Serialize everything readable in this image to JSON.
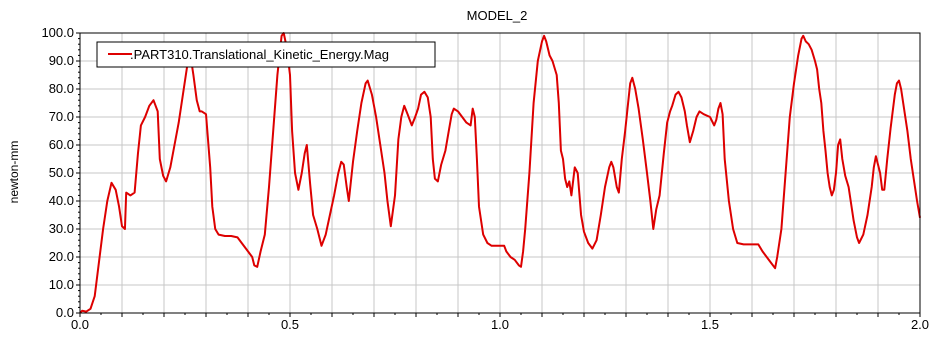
{
  "chart_data": {
    "type": "line",
    "title": "MODEL_2",
    "xlabel": "",
    "ylabel": "newton-mm",
    "xlim": [
      0.0,
      2.0
    ],
    "ylim": [
      0.0,
      100.0
    ],
    "xticks": [
      "0.0",
      "0.5",
      "1.0",
      "1.5",
      "2.0"
    ],
    "yticks": [
      "0.0",
      "10.0",
      "20.0",
      "30.0",
      "40.0",
      "50.0",
      "60.0",
      "70.0",
      "80.0",
      "90.0",
      "100.0"
    ],
    "grid": true,
    "legend_position": "top-left",
    "series": [
      {
        "name": ".PART310.Translational_Kinetic_Energy.Mag",
        "color": "#dd0000",
        "points": [
          [
            0.0,
            0.0
          ],
          [
            0.005,
            0.8
          ],
          [
            0.015,
            0.5
          ],
          [
            0.025,
            1.5
          ],
          [
            0.035,
            6
          ],
          [
            0.045,
            18
          ],
          [
            0.055,
            30
          ],
          [
            0.065,
            40
          ],
          [
            0.075,
            46.5
          ],
          [
            0.085,
            44
          ],
          [
            0.093,
            38
          ],
          [
            0.1,
            31
          ],
          [
            0.107,
            30
          ],
          [
            0.11,
            43
          ],
          [
            0.12,
            42
          ],
          [
            0.13,
            43
          ],
          [
            0.138,
            57
          ],
          [
            0.145,
            67
          ],
          [
            0.155,
            70
          ],
          [
            0.165,
            74
          ],
          [
            0.175,
            76
          ],
          [
            0.185,
            72
          ],
          [
            0.19,
            55
          ],
          [
            0.198,
            49
          ],
          [
            0.205,
            47
          ],
          [
            0.215,
            52
          ],
          [
            0.225,
            60
          ],
          [
            0.235,
            68
          ],
          [
            0.245,
            78
          ],
          [
            0.255,
            88
          ],
          [
            0.262,
            93
          ],
          [
            0.27,
            85
          ],
          [
            0.278,
            76
          ],
          [
            0.285,
            72
          ],
          [
            0.29,
            72
          ],
          [
            0.3,
            71
          ],
          [
            0.31,
            52
          ],
          [
            0.315,
            38
          ],
          [
            0.322,
            30
          ],
          [
            0.33,
            28
          ],
          [
            0.345,
            27.5
          ],
          [
            0.36,
            27.5
          ],
          [
            0.375,
            27
          ],
          [
            0.385,
            25
          ],
          [
            0.4,
            22
          ],
          [
            0.41,
            20
          ],
          [
            0.415,
            17
          ],
          [
            0.422,
            16.5
          ],
          [
            0.43,
            22
          ],
          [
            0.44,
            28
          ],
          [
            0.45,
            45
          ],
          [
            0.46,
            65
          ],
          [
            0.47,
            85
          ],
          [
            0.48,
            99
          ],
          [
            0.485,
            100
          ],
          [
            0.492,
            95
          ],
          [
            0.5,
            85
          ],
          [
            0.505,
            65
          ],
          [
            0.512,
            50
          ],
          [
            0.52,
            44
          ],
          [
            0.528,
            50
          ],
          [
            0.535,
            57
          ],
          [
            0.54,
            60
          ],
          [
            0.548,
            46
          ],
          [
            0.555,
            35
          ],
          [
            0.565,
            30
          ],
          [
            0.575,
            24
          ],
          [
            0.585,
            28
          ],
          [
            0.595,
            35
          ],
          [
            0.605,
            42
          ],
          [
            0.615,
            50
          ],
          [
            0.622,
            54
          ],
          [
            0.628,
            53
          ],
          [
            0.635,
            45
          ],
          [
            0.64,
            40
          ],
          [
            0.65,
            54
          ],
          [
            0.66,
            65
          ],
          [
            0.67,
            75
          ],
          [
            0.68,
            82
          ],
          [
            0.685,
            83
          ],
          [
            0.695,
            78
          ],
          [
            0.705,
            70
          ],
          [
            0.715,
            60
          ],
          [
            0.725,
            50
          ],
          [
            0.732,
            40
          ],
          [
            0.74,
            31
          ],
          [
            0.75,
            42
          ],
          [
            0.758,
            62
          ],
          [
            0.765,
            70
          ],
          [
            0.772,
            74
          ],
          [
            0.78,
            71
          ],
          [
            0.79,
            67
          ],
          [
            0.798,
            70
          ],
          [
            0.805,
            73
          ],
          [
            0.812,
            78
          ],
          [
            0.82,
            79
          ],
          [
            0.828,
            77
          ],
          [
            0.835,
            70
          ],
          [
            0.84,
            55
          ],
          [
            0.845,
            48
          ],
          [
            0.852,
            47
          ],
          [
            0.86,
            53
          ],
          [
            0.87,
            58
          ],
          [
            0.878,
            65
          ],
          [
            0.885,
            71
          ],
          [
            0.89,
            73
          ],
          [
            0.9,
            72
          ],
          [
            0.91,
            70
          ],
          [
            0.92,
            68
          ],
          [
            0.93,
            67
          ],
          [
            0.935,
            73
          ],
          [
            0.94,
            70
          ],
          [
            0.945,
            55
          ],
          [
            0.95,
            38
          ],
          [
            0.96,
            28
          ],
          [
            0.97,
            25
          ],
          [
            0.98,
            24
          ],
          [
            0.995,
            24
          ],
          [
            1.01,
            24
          ],
          [
            1.015,
            22
          ],
          [
            1.025,
            20
          ],
          [
            1.035,
            19
          ],
          [
            1.045,
            17
          ],
          [
            1.05,
            16.5
          ],
          [
            1.055,
            22
          ],
          [
            1.06,
            30
          ],
          [
            1.07,
            50
          ],
          [
            1.08,
            75
          ],
          [
            1.09,
            90
          ],
          [
            1.1,
            97
          ],
          [
            1.105,
            99
          ],
          [
            1.11,
            97
          ],
          [
            1.118,
            92
          ],
          [
            1.125,
            90
          ],
          [
            1.135,
            85
          ],
          [
            1.14,
            75
          ],
          [
            1.145,
            58
          ],
          [
            1.15,
            55
          ],
          [
            1.155,
            48
          ],
          [
            1.16,
            45
          ],
          [
            1.165,
            47
          ],
          [
            1.17,
            42
          ],
          [
            1.178,
            52
          ],
          [
            1.185,
            50
          ],
          [
            1.193,
            35
          ],
          [
            1.2,
            29
          ],
          [
            1.21,
            25
          ],
          [
            1.22,
            23
          ],
          [
            1.23,
            26
          ],
          [
            1.24,
            35
          ],
          [
            1.25,
            45
          ],
          [
            1.26,
            52
          ],
          [
            1.265,
            54
          ],
          [
            1.27,
            52
          ],
          [
            1.278,
            45
          ],
          [
            1.283,
            43
          ],
          [
            1.29,
            55
          ],
          [
            1.298,
            65
          ],
          [
            1.305,
            75
          ],
          [
            1.31,
            82
          ],
          [
            1.315,
            84
          ],
          [
            1.322,
            80
          ],
          [
            1.33,
            73
          ],
          [
            1.34,
            62
          ],
          [
            1.35,
            50
          ],
          [
            1.358,
            40
          ],
          [
            1.365,
            30
          ],
          [
            1.372,
            37
          ],
          [
            1.38,
            42
          ],
          [
            1.39,
            57
          ],
          [
            1.398,
            68
          ],
          [
            1.405,
            72
          ],
          [
            1.41,
            74
          ],
          [
            1.418,
            78
          ],
          [
            1.425,
            79
          ],
          [
            1.432,
            77
          ],
          [
            1.44,
            72
          ],
          [
            1.445,
            67
          ],
          [
            1.452,
            61
          ],
          [
            1.46,
            65
          ],
          [
            1.468,
            70
          ],
          [
            1.475,
            72
          ],
          [
            1.485,
            71
          ],
          [
            1.5,
            70
          ],
          [
            1.51,
            67
          ],
          [
            1.515,
            69
          ],
          [
            1.52,
            73
          ],
          [
            1.525,
            75
          ],
          [
            1.53,
            71
          ],
          [
            1.535,
            55
          ],
          [
            1.545,
            40
          ],
          [
            1.555,
            30
          ],
          [
            1.565,
            25
          ],
          [
            1.58,
            24.5
          ],
          [
            1.6,
            24.5
          ],
          [
            1.615,
            24.5
          ],
          [
            1.625,
            22
          ],
          [
            1.635,
            20
          ],
          [
            1.645,
            18
          ],
          [
            1.655,
            16
          ],
          [
            1.66,
            20
          ],
          [
            1.67,
            30
          ],
          [
            1.68,
            50
          ],
          [
            1.69,
            70
          ],
          [
            1.7,
            82
          ],
          [
            1.71,
            92
          ],
          [
            1.718,
            98
          ],
          [
            1.722,
            99
          ],
          [
            1.728,
            97
          ],
          [
            1.735,
            96
          ],
          [
            1.742,
            94
          ],
          [
            1.75,
            90
          ],
          [
            1.755,
            87
          ],
          [
            1.76,
            80
          ],
          [
            1.765,
            75
          ],
          [
            1.77,
            65
          ],
          [
            1.775,
            58
          ],
          [
            1.78,
            50
          ],
          [
            1.785,
            45
          ],
          [
            1.79,
            42
          ],
          [
            1.795,
            44
          ],
          [
            1.8,
            50
          ],
          [
            1.805,
            60
          ],
          [
            1.81,
            62
          ],
          [
            1.815,
            55
          ],
          [
            1.822,
            49
          ],
          [
            1.83,
            45
          ],
          [
            1.835,
            40
          ],
          [
            1.842,
            33
          ],
          [
            1.85,
            27
          ],
          [
            1.855,
            25
          ],
          [
            1.865,
            28
          ],
          [
            1.875,
            35
          ],
          [
            1.885,
            45
          ],
          [
            1.89,
            52
          ],
          [
            1.895,
            56
          ],
          [
            1.9,
            53
          ],
          [
            1.905,
            50
          ],
          [
            1.91,
            44
          ],
          [
            1.915,
            44
          ],
          [
            1.922,
            55
          ],
          [
            1.93,
            66
          ],
          [
            1.935,
            72
          ],
          [
            1.94,
            78
          ],
          [
            1.945,
            82
          ],
          [
            1.95,
            83
          ],
          [
            1.955,
            80
          ],
          [
            1.962,
            73
          ],
          [
            1.97,
            65
          ],
          [
            1.978,
            55
          ],
          [
            1.985,
            48
          ],
          [
            1.993,
            40
          ],
          [
            2.0,
            34
          ]
        ]
      }
    ]
  },
  "colors": {
    "background": "#ffffff",
    "grid_major": "#c7c7c7",
    "axis": "#000000",
    "series": "#dd0000"
  }
}
